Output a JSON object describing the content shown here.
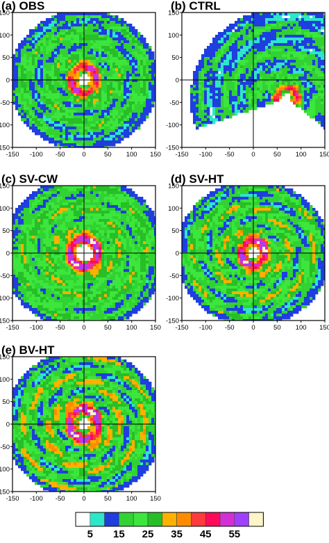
{
  "chart_data": [
    {
      "type": "heatmap",
      "panel": "a",
      "title": "(a) OBS",
      "xticks": [
        "-150",
        "-100",
        "-50",
        "0",
        "50",
        "100",
        "150"
      ],
      "yticks": [
        "150",
        "100",
        "50",
        "0",
        "-50",
        "-100",
        "-150"
      ],
      "xlim": [
        -150,
        150
      ],
      "ylim": [
        -150,
        150
      ],
      "field": {
        "eye_radius": 12,
        "ring_radius": 28,
        "ring_level": 48,
        "max_radius": 145,
        "coverage_sector": [
          0,
          360
        ],
        "outer_level": 22,
        "spiral_amplitude": 6
      }
    },
    {
      "type": "heatmap",
      "panel": "b",
      "title": "(b) CTRL",
      "xticks": [
        "-150",
        "-100",
        "-50",
        "0",
        "50",
        "100",
        "150"
      ],
      "yticks": [
        "150",
        "100",
        "50",
        "0",
        "-50",
        "-100",
        "-150"
      ],
      "xlim": [
        -150,
        150
      ],
      "ylim": [
        -150,
        150
      ],
      "field": {
        "center_x": 70,
        "center_y": -40,
        "eye_radius": 10,
        "ring_radius": 22,
        "ring_level": 44,
        "max_radius": 190,
        "coverage_sector": [
          -40,
          200
        ],
        "outer_level": 18,
        "spiral_amplitude": 5
      }
    },
    {
      "type": "heatmap",
      "panel": "c",
      "title": "(c) SV-CW",
      "xticks": [
        "-150",
        "-100",
        "-50",
        "0",
        "50",
        "100",
        "150"
      ],
      "yticks": [
        "150",
        "100",
        "50",
        "0",
        "-50",
        "-100",
        "-150"
      ],
      "xlim": [
        -150,
        150
      ],
      "ylim": [
        -150,
        150
      ],
      "field": {
        "eye_radius": 18,
        "ring_radius": 30,
        "ring_level": 56,
        "max_radius": 160,
        "coverage_sector": [
          0,
          360
        ],
        "outer_level": 25,
        "spiral_amplitude": 5
      }
    },
    {
      "type": "heatmap",
      "panel": "d",
      "title": "(d) SV-HT",
      "xticks": [
        "-150",
        "-100",
        "-50",
        "0",
        "50",
        "100",
        "150"
      ],
      "yticks": [
        "150",
        "100",
        "50",
        "0",
        "-50",
        "-100",
        "-150"
      ],
      "xlim": [
        -150,
        150
      ],
      "ylim": [
        -150,
        150
      ],
      "field": {
        "eye_radius": 12,
        "ring_radius": 26,
        "ring_level": 54,
        "max_radius": 150,
        "coverage_sector": [
          0,
          360
        ],
        "outer_level": 24,
        "spiral_amplitude": 7
      }
    },
    {
      "type": "heatmap",
      "panel": "e",
      "title": "(e) BV-HT",
      "xticks": [
        "-150",
        "-100",
        "-50",
        "0",
        "50",
        "100",
        "150"
      ],
      "yticks": [
        "150",
        "100",
        "50",
        "0",
        "-50",
        "-100",
        "-150"
      ],
      "xlim": [
        -150,
        150
      ],
      "ylim": [
        -150,
        150
      ],
      "field": {
        "eye_radius": 12,
        "ring_radius": 32,
        "ring_level": 55,
        "max_radius": 155,
        "coverage_sector": [
          0,
          360
        ],
        "outer_level": 25,
        "spiral_amplitude": 8
      }
    }
  ],
  "colorbar": {
    "colors": [
      "#ffffff",
      "#2ee6c8",
      "#1f3ee0",
      "#32d232",
      "#3ce63c",
      "#28be28",
      "#ffb000",
      "#ff8c00",
      "#ff3a3a",
      "#ff0a5a",
      "#d42fd4",
      "#a040ff",
      "#fff5c8"
    ],
    "labels": [
      "5",
      "15",
      "25",
      "35",
      "45",
      "55"
    ]
  }
}
